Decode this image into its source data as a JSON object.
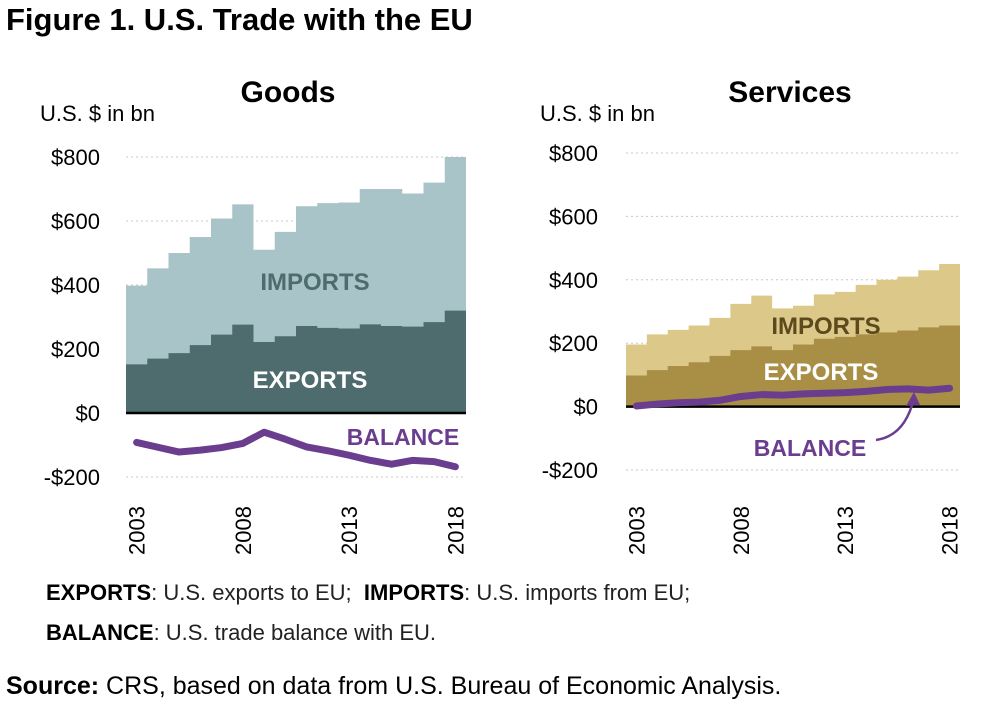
{
  "figure_title": "Figure 1. U.S. Trade with the EU",
  "chart_data": [
    {
      "type": "area",
      "title": "Goods",
      "ylabel": "U.S. $ in bn",
      "ylim": [
        -200,
        800
      ],
      "yticks": [
        800,
        600,
        400,
        200,
        0,
        -200
      ],
      "ytick_labels": [
        "$800",
        "$600",
        "$400",
        "$200",
        "$0",
        "-$200"
      ],
      "xtick_labels": [
        "2003",
        "2008",
        "2013",
        "2018"
      ],
      "x": [
        2003,
        2004,
        2005,
        2006,
        2007,
        2008,
        2009,
        2010,
        2011,
        2012,
        2013,
        2014,
        2015,
        2016,
        2017,
        2018
      ],
      "grid": true,
      "series": [
        {
          "name": "IMPORTS",
          "kind": "stacked-total",
          "color": "#a9c4c8",
          "values": [
            398,
            452,
            500,
            550,
            608,
            652,
            510,
            566,
            646,
            656,
            658,
            700,
            700,
            686,
            720,
            800
          ]
        },
        {
          "name": "EXPORTS",
          "kind": "area",
          "color": "#4e6b6d",
          "values": [
            152,
            170,
            187,
            212,
            245,
            276,
            222,
            240,
            272,
            266,
            264,
            277,
            272,
            270,
            284,
            320
          ]
        },
        {
          "name": "BALANCE",
          "kind": "line",
          "color": "#6a3d8f",
          "values": [
            -92,
            -107,
            -122,
            -116,
            -108,
            -95,
            -60,
            -82,
            -106,
            -118,
            -132,
            -148,
            -160,
            -148,
            -152,
            -168
          ]
        }
      ]
    },
    {
      "type": "area",
      "title": "Services",
      "ylabel": "U.S. $ in bn",
      "ylim": [
        -200,
        800
      ],
      "yticks": [
        800,
        600,
        400,
        200,
        0,
        -200
      ],
      "ytick_labels": [
        "$800",
        "$600",
        "$400",
        "$200",
        "$0",
        "-$200"
      ],
      "xtick_labels": [
        "2003",
        "2008",
        "2013",
        "2018"
      ],
      "x": [
        2003,
        2004,
        2005,
        2006,
        2007,
        2008,
        2009,
        2010,
        2011,
        2012,
        2013,
        2014,
        2015,
        2016,
        2017,
        2018
      ],
      "grid": true,
      "series": [
        {
          "name": "IMPORTS",
          "kind": "stacked-total",
          "color": "#dcc98a",
          "values": [
            196,
            228,
            242,
            256,
            280,
            324,
            350,
            310,
            318,
            354,
            362,
            384,
            400,
            410,
            430,
            450
          ]
        },
        {
          "name": "EXPORTS",
          "kind": "area",
          "color": "#a88f45",
          "values": [
            98,
            115,
            128,
            140,
            160,
            178,
            190,
            178,
            196,
            214,
            220,
            228,
            234,
            240,
            250,
            256
          ]
        },
        {
          "name": "BALANCE",
          "kind": "line",
          "color": "#6a3d8f",
          "values": [
            2,
            8,
            12,
            14,
            20,
            32,
            38,
            36,
            40,
            42,
            44,
            48,
            54,
            56,
            52,
            58
          ]
        }
      ]
    }
  ],
  "panel_labels": [
    {
      "imports": "IMPORTS",
      "exports": "EXPORTS",
      "balance": "BALANCE"
    },
    {
      "imports": "IMPORTS",
      "exports": "EXPORTS",
      "balance": "BALANCE"
    }
  ],
  "legend": {
    "line1": [
      {
        "term": "EXPORTS",
        "desc": ": U.S. exports to EU;"
      },
      {
        "term": "IMPORTS",
        "desc": ": U.S. imports from EU;"
      }
    ],
    "line2": [
      {
        "term": "BALANCE",
        "desc": ": U.S. trade balance with EU."
      }
    ]
  },
  "source": {
    "label": "Source:",
    "text": " CRS, based on data from U.S. Bureau of Economic Analysis."
  },
  "colors": {
    "balance_label": "#6a3d8f",
    "imports_label_goods": "#4e6b6d",
    "exports_label": "#ffffff",
    "imports_label_services": "#5a4a1c",
    "zero_line": "#000000",
    "gridline": "#c8c8c8"
  }
}
